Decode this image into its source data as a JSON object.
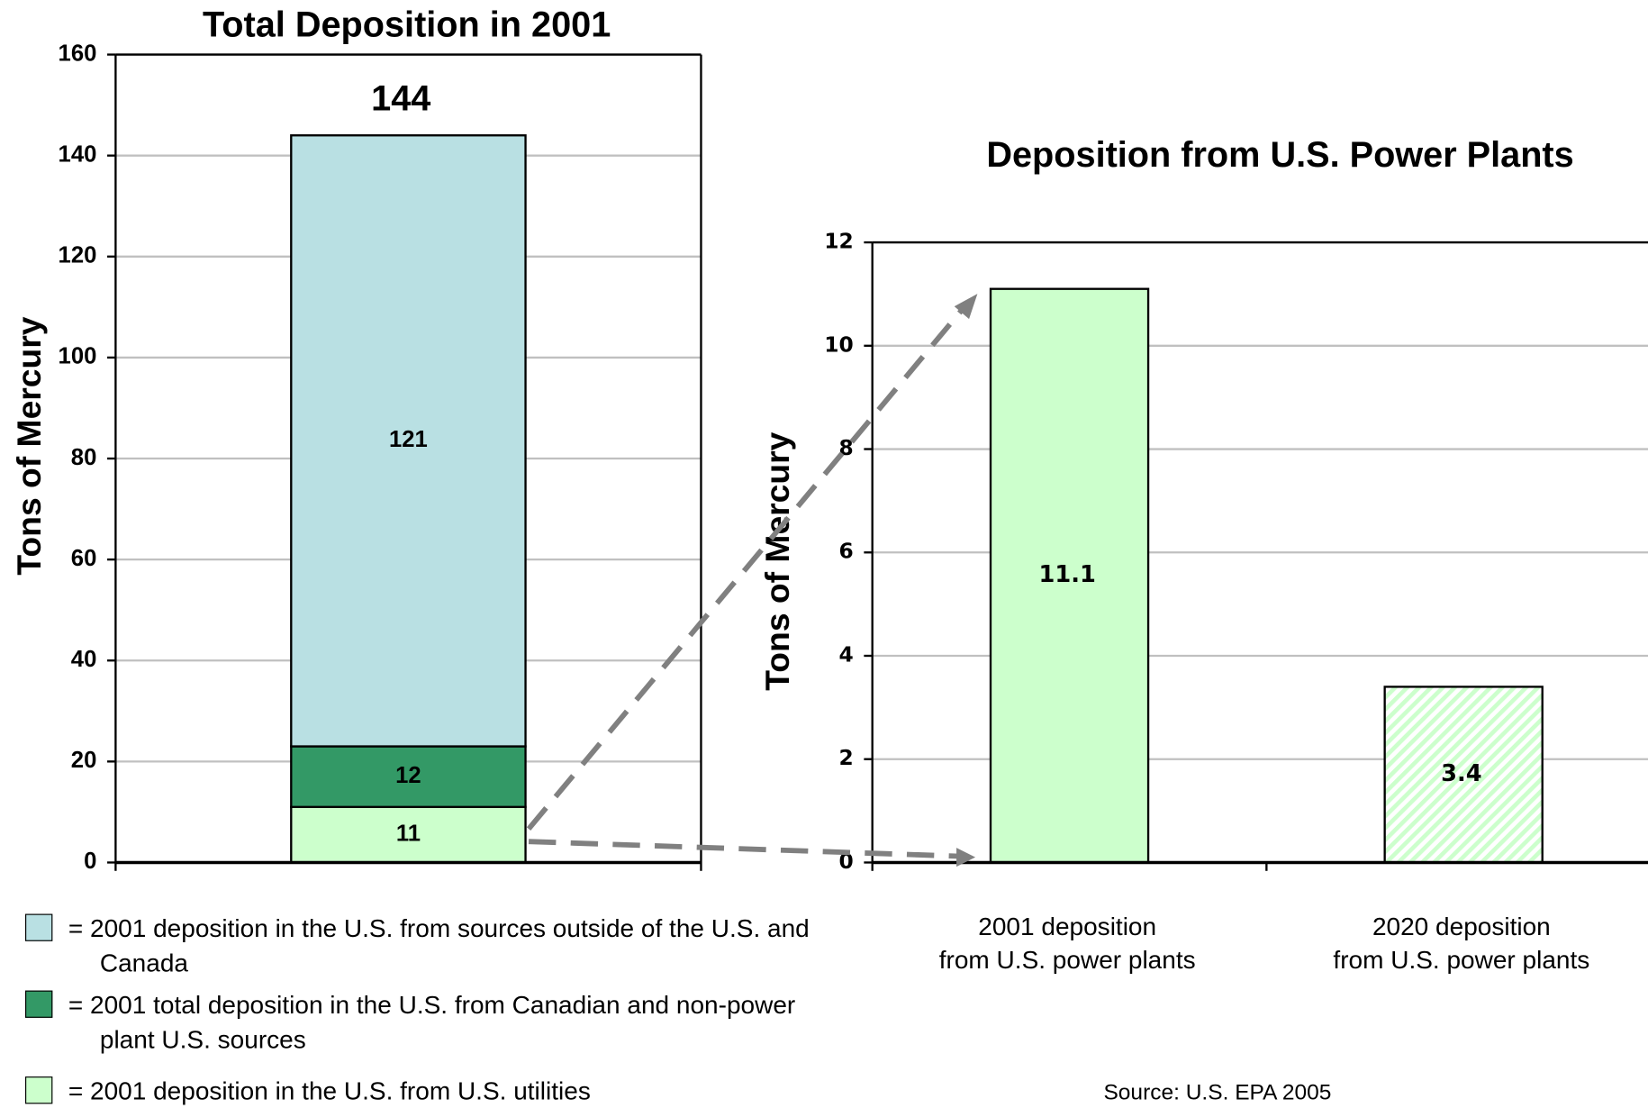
{
  "chart_data": [
    {
      "type": "bar",
      "stacked": true,
      "title": "Total Deposition in 2001",
      "ylabel": "Tons of Mercury",
      "categories": [
        null
      ],
      "series": [
        {
          "name": "= 2001 deposition in the U.S. from U.S. utilities",
          "color": "#ccffcc",
          "values": [
            11
          ]
        },
        {
          "name": "= 2001 total deposition in the U.S. from Canadian and non-power plant U.S. sources",
          "color": "#339966",
          "values": [
            12
          ]
        },
        {
          "name": "= 2001 deposition in the U.S. from sources outside of the U.S. and Canada",
          "color": "#b9e0e3",
          "values": [
            121
          ]
        }
      ],
      "total": 144,
      "ylim": [
        0,
        160
      ],
      "yticks": [
        0,
        20,
        40,
        60,
        80,
        100,
        120,
        140,
        160
      ],
      "grid": true
    },
    {
      "type": "bar",
      "title": "Deposition from U.S. Power Plants",
      "ylabel": "Tons of Mercury",
      "categories": [
        "2001 deposition\nfrom U.S. power plants",
        "2020 deposition\nfrom U.S. power plants"
      ],
      "values": [
        11.1,
        3.4
      ],
      "color": "#ccffcc",
      "patterns": [
        "solid",
        "hatched"
      ],
      "ylim": [
        0,
        12
      ],
      "yticks": [
        0,
        2,
        4,
        6,
        8,
        10,
        12
      ],
      "grid": true
    }
  ],
  "source": "Source: U.S. EPA 2005"
}
